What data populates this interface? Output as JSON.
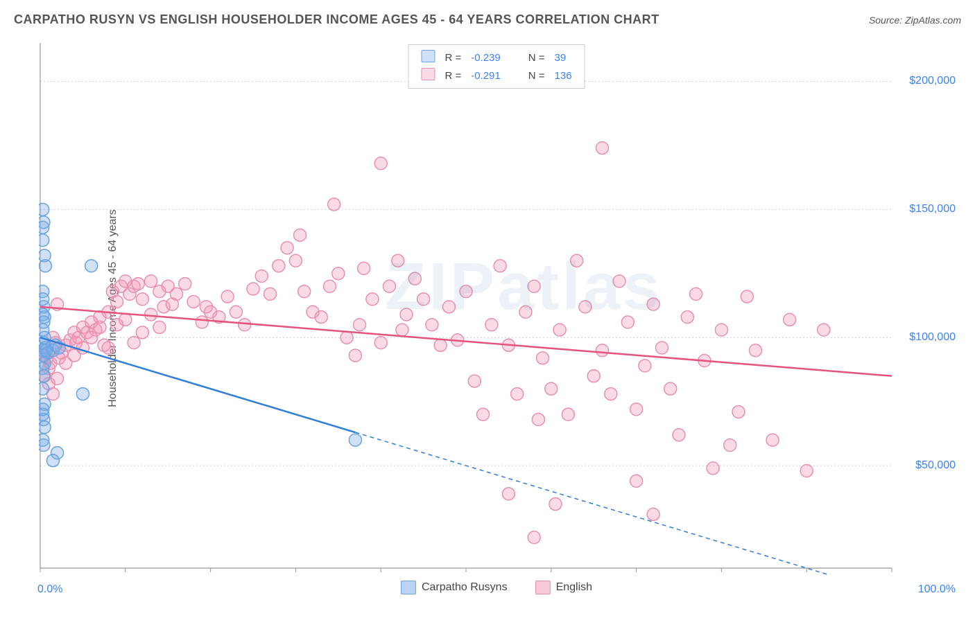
{
  "header": {
    "title": "CARPATHO RUSYN VS ENGLISH HOUSEHOLDER INCOME AGES 45 - 64 YEARS CORRELATION CHART",
    "source_label": "Source: ",
    "source_value": "ZipAtlas.com"
  },
  "watermark": "ZIPatlas",
  "chart": {
    "type": "scatter",
    "ylabel": "Householder Income Ages 45 - 64 years",
    "xlim": [
      0,
      100
    ],
    "ylim": [
      10000,
      215000
    ],
    "xtick_labels": {
      "0": "0.0%",
      "100": "100.0%"
    },
    "ytick_values": [
      50000,
      100000,
      150000,
      200000
    ],
    "ytick_labels": [
      "$50,000",
      "$100,000",
      "$150,000",
      "$200,000"
    ],
    "grid_color": "#d0d0d0",
    "axis_color": "#999999",
    "background_color": "#ffffff",
    "marker_radius": 9,
    "marker_stroke_width": 1.5,
    "trend_line_width": 2.5,
    "series": [
      {
        "name": "Carpatho Rusyns",
        "fill": "rgba(120,170,230,0.35)",
        "stroke": "#6aa3e0",
        "line_color": "#2f7ed8",
        "R": "-0.239",
        "N": "39",
        "points": [
          [
            0.3,
            150000
          ],
          [
            0.4,
            145000
          ],
          [
            0.3,
            138000
          ],
          [
            0.5,
            132000
          ],
          [
            0.3,
            143000
          ],
          [
            0.6,
            128000
          ],
          [
            6.0,
            128000
          ],
          [
            0.3,
            118000
          ],
          [
            0.4,
            112000
          ],
          [
            0.5,
            108000
          ],
          [
            0.3,
            103000
          ],
          [
            0.4,
            98000
          ],
          [
            0.6,
            96000
          ],
          [
            0.3,
            95000
          ],
          [
            0.4,
            93000
          ],
          [
            0.7,
            95000
          ],
          [
            0.9,
            94000
          ],
          [
            0.5,
            90000
          ],
          [
            0.3,
            88000
          ],
          [
            0.4,
            85000
          ],
          [
            1.5,
            95000
          ],
          [
            1.8,
            97000
          ],
          [
            2.2,
            96000
          ],
          [
            0.3,
            80000
          ],
          [
            5.0,
            78000
          ],
          [
            0.3,
            70000
          ],
          [
            0.4,
            68000
          ],
          [
            0.5,
            65000
          ],
          [
            0.3,
            60000
          ],
          [
            0.4,
            58000
          ],
          [
            0.3,
            72000
          ],
          [
            0.5,
            74000
          ],
          [
            1.5,
            52000
          ],
          [
            2.0,
            55000
          ],
          [
            0.3,
            109000
          ],
          [
            0.4,
            106000
          ],
          [
            0.3,
            115000
          ],
          [
            0.5,
            100000
          ],
          [
            37.0,
            60000
          ]
        ],
        "trend": {
          "x1": 0,
          "y1": 100000,
          "x2": 100,
          "y2": 0,
          "solid_until_x": 37
        }
      },
      {
        "name": "English",
        "fill": "rgba(240,150,180,0.35)",
        "stroke": "#e890b0",
        "line_color": "#e6537d",
        "R": "-0.291",
        "N": "136",
        "points": [
          [
            0.5,
            93000
          ],
          [
            0.8,
            92000
          ],
          [
            1.0,
            88000
          ],
          [
            1.2,
            90000
          ],
          [
            1.5,
            100000
          ],
          [
            1.8,
            98000
          ],
          [
            2.0,
            113000
          ],
          [
            2.2,
            92000
          ],
          [
            2.5,
            94000
          ],
          [
            3.0,
            97000
          ],
          [
            3.5,
            99000
          ],
          [
            4.0,
            102000
          ],
          [
            4.2,
            98000
          ],
          [
            4.5,
            100000
          ],
          [
            5.0,
            104000
          ],
          [
            5.5,
            102000
          ],
          [
            6.0,
            106000
          ],
          [
            6.5,
            103000
          ],
          [
            7.0,
            108000
          ],
          [
            7.5,
            97000
          ],
          [
            8.0,
            110000
          ],
          [
            8.5,
            118000
          ],
          [
            9.0,
            114000
          ],
          [
            9.5,
            120000
          ],
          [
            10.0,
            122000
          ],
          [
            10.5,
            117000
          ],
          [
            11.0,
            120000
          ],
          [
            11.5,
            121000
          ],
          [
            12.0,
            115000
          ],
          [
            13.0,
            122000
          ],
          [
            14.0,
            118000
          ],
          [
            14.5,
            112000
          ],
          [
            15.0,
            120000
          ],
          [
            15.5,
            113000
          ],
          [
            16.0,
            117000
          ],
          [
            17.0,
            121000
          ],
          [
            18.0,
            114000
          ],
          [
            19.0,
            106000
          ],
          [
            19.5,
            112000
          ],
          [
            20.0,
            110000
          ],
          [
            21.0,
            108000
          ],
          [
            22.0,
            116000
          ],
          [
            23.0,
            110000
          ],
          [
            24.0,
            105000
          ],
          [
            25.0,
            119000
          ],
          [
            26.0,
            124000
          ],
          [
            27.0,
            117000
          ],
          [
            28.0,
            128000
          ],
          [
            29.0,
            135000
          ],
          [
            30.0,
            130000
          ],
          [
            30.5,
            140000
          ],
          [
            31.0,
            118000
          ],
          [
            32.0,
            110000
          ],
          [
            33.0,
            108000
          ],
          [
            34.0,
            120000
          ],
          [
            34.5,
            152000
          ],
          [
            35.0,
            125000
          ],
          [
            36.0,
            100000
          ],
          [
            37.0,
            93000
          ],
          [
            37.5,
            105000
          ],
          [
            38.0,
            127000
          ],
          [
            39.0,
            115000
          ],
          [
            40.0,
            168000
          ],
          [
            40.0,
            98000
          ],
          [
            41.0,
            120000
          ],
          [
            42.0,
            130000
          ],
          [
            42.5,
            103000
          ],
          [
            43.0,
            109000
          ],
          [
            44.0,
            123000
          ],
          [
            45.0,
            115000
          ],
          [
            46.0,
            105000
          ],
          [
            47.0,
            97000
          ],
          [
            48.0,
            112000
          ],
          [
            49.0,
            99000
          ],
          [
            50.0,
            118000
          ],
          [
            51.0,
            83000
          ],
          [
            52.0,
            70000
          ],
          [
            53.0,
            105000
          ],
          [
            54.0,
            128000
          ],
          [
            55.0,
            97000
          ],
          [
            55.0,
            39000
          ],
          [
            56.0,
            78000
          ],
          [
            57.0,
            110000
          ],
          [
            58.0,
            120000
          ],
          [
            58.0,
            22000
          ],
          [
            58.5,
            68000
          ],
          [
            59.0,
            92000
          ],
          [
            60.0,
            80000
          ],
          [
            60.5,
            35000
          ],
          [
            61.0,
            103000
          ],
          [
            62.0,
            70000
          ],
          [
            63.0,
            130000
          ],
          [
            64.0,
            112000
          ],
          [
            65.0,
            85000
          ],
          [
            66.0,
            174000
          ],
          [
            66.0,
            95000
          ],
          [
            67.0,
            78000
          ],
          [
            68.0,
            122000
          ],
          [
            69.0,
            106000
          ],
          [
            70.0,
            72000
          ],
          [
            70.0,
            44000
          ],
          [
            71.0,
            89000
          ],
          [
            72.0,
            113000
          ],
          [
            72.0,
            31000
          ],
          [
            73.0,
            96000
          ],
          [
            74.0,
            80000
          ],
          [
            75.0,
            62000
          ],
          [
            76.0,
            108000
          ],
          [
            77.0,
            117000
          ],
          [
            78.0,
            91000
          ],
          [
            79.0,
            49000
          ],
          [
            80.0,
            103000
          ],
          [
            81.0,
            58000
          ],
          [
            82.0,
            71000
          ],
          [
            83.0,
            116000
          ],
          [
            84.0,
            95000
          ],
          [
            86.0,
            60000
          ],
          [
            88.0,
            107000
          ],
          [
            90.0,
            48000
          ],
          [
            92.0,
            103000
          ],
          [
            0.5,
            85000
          ],
          [
            1.0,
            82000
          ],
          [
            1.5,
            78000
          ],
          [
            2.0,
            84000
          ],
          [
            3.0,
            90000
          ],
          [
            4.0,
            93000
          ],
          [
            5.0,
            96000
          ],
          [
            6.0,
            100000
          ],
          [
            7.0,
            104000
          ],
          [
            8.0,
            96000
          ],
          [
            9.0,
            105000
          ],
          [
            10.0,
            107000
          ],
          [
            11.0,
            98000
          ],
          [
            12.0,
            102000
          ],
          [
            13.0,
            109000
          ],
          [
            14.0,
            104000
          ]
        ],
        "trend": {
          "x1": 0,
          "y1": 112000,
          "x2": 100,
          "y2": 85000,
          "solid_until_x": 100
        }
      }
    ]
  },
  "legend_bottom": [
    {
      "label": "Carpatho Rusyns",
      "fill": "rgba(120,170,230,0.5)",
      "border": "#6aa3e0"
    },
    {
      "label": "English",
      "fill": "rgba(240,150,180,0.5)",
      "border": "#e890b0"
    }
  ],
  "stats_box": {
    "r_label": "R =",
    "n_label": "N ="
  }
}
